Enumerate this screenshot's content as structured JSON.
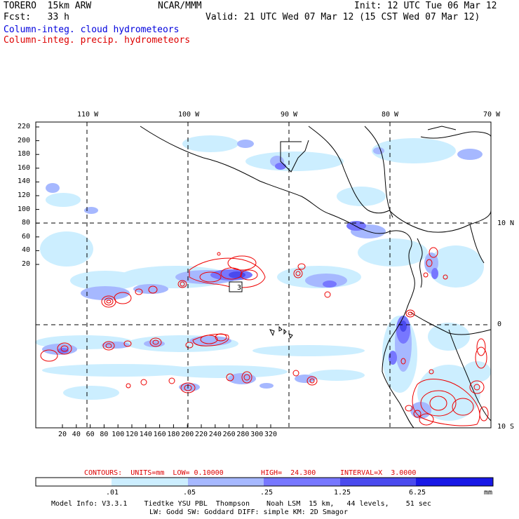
{
  "header": {
    "model": "TORERO  15km ARW",
    "center": "NCAR/MMM",
    "init": "Init: 12 UTC Tue 06 Mar 12",
    "forecast": "Fcst:   33 h",
    "valid": "Valid: 21 UTC Wed 07 Mar 12 (15 CST Wed 07 Mar 12)",
    "field1": "Column-integ. cloud hydrometeors",
    "field2": "Column-integ. precip. hydrometeors"
  },
  "colors": {
    "field1": "#0000dd",
    "field2": "#dd0000",
    "bins": [
      "#ffffff",
      "#cceeff",
      "#a6b8ff",
      "#7777ff",
      "#4a4aee",
      "#1818e6"
    ],
    "contour": "#ee0000",
    "land": "#000000"
  },
  "map": {
    "lon_labels": [
      "110 W",
      "100 W",
      "90 W",
      "80 W",
      "70 W"
    ],
    "lat_labels": [
      "10 N",
      "0",
      "10 S"
    ],
    "y_ticks": [
      "220",
      "200",
      "180",
      "160",
      "140",
      "120",
      "100",
      "80",
      "60",
      "40",
      "20"
    ],
    "x_ticks": [
      "20",
      "40",
      "60",
      "80",
      "100",
      "120",
      "140",
      "160",
      "180",
      "200",
      "220",
      "240",
      "260",
      "280",
      "300",
      "320"
    ],
    "max_label": "3"
  },
  "contours_line": {
    "contours": "CONTOURS:  UNITS=mm  LOW= 0.10000",
    "high": "HIGH=  24.300",
    "interval": "INTERVAL=X  3.0000"
  },
  "colorbar": {
    "values": [
      ".01",
      ".05",
      ".25",
      "1.25",
      "6.25"
    ],
    "units": "mm"
  },
  "footer": {
    "line1": "Model Info: V3.3.1    Tiedtke YSU PBL  Thompson    Noah LSM  15 km,   44 levels,    51 sec",
    "line2": "LW: Godd SW: Goddard DIFF: simple KM: 2D Smagor"
  }
}
